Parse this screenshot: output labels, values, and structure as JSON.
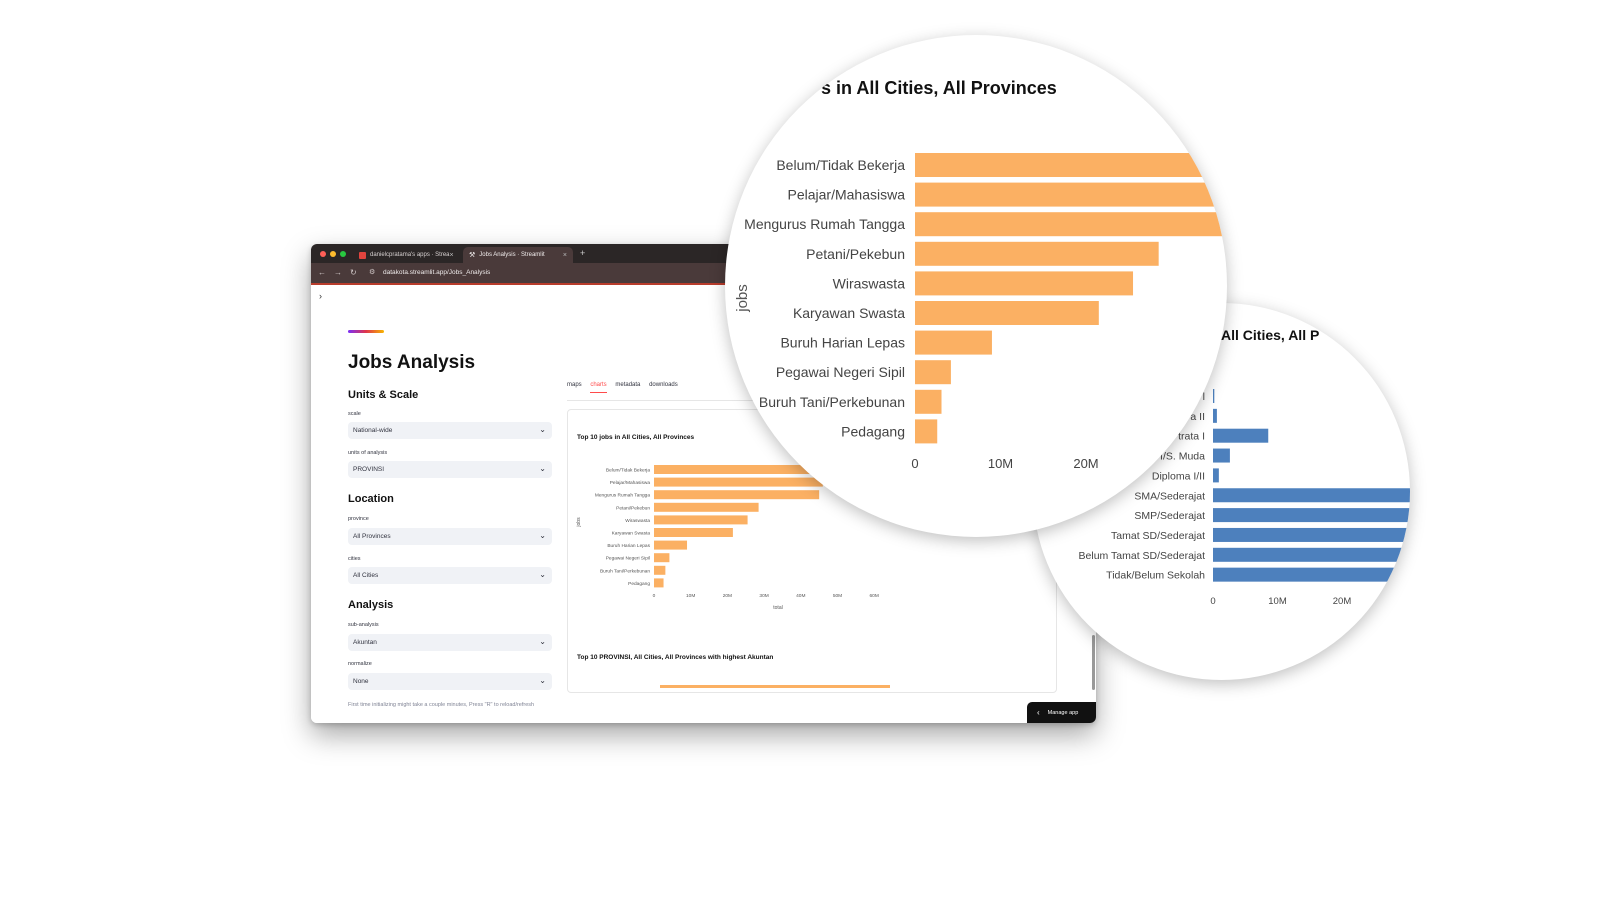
{
  "browser": {
    "tabs": [
      {
        "label": "danielcpratama's apps · Strea"
      },
      {
        "label": "Jobs Analysis · Streamlit"
      }
    ],
    "url": "datakota.streamlit.app/Jobs_Analysis",
    "sidebar_toggle": "›"
  },
  "app": {
    "title": "Jobs Analysis",
    "sections": {
      "units_scale": "Units & Scale",
      "location": "Location",
      "analysis": "Analysis"
    },
    "fields": {
      "scale": {
        "label": "scale",
        "value": "National-wide"
      },
      "units": {
        "label": "units of analysis",
        "value": "PROVINSI"
      },
      "province": {
        "label": "province",
        "value": "All Provinces"
      },
      "cities": {
        "label": "cities",
        "value": "All Cities"
      },
      "sub_analysis": {
        "label": "sub-analysis",
        "value": "Akuntan"
      },
      "normalize": {
        "label": "normalize",
        "value": "None"
      }
    },
    "hint": "First time initializing might take a couple minutes, Press \"R\" to reload/refresh",
    "tabs": [
      "maps",
      "charts",
      "metadata",
      "downloads"
    ],
    "active_tab": "charts",
    "manage_label": "Manage app",
    "chart2_title": "Top 10 PROVINSI, All Cities, All Provinces with highest Akuntan"
  },
  "magnifier_orange": {
    "title": "s in All Cities, All Provinces",
    "ylabel": "jobs",
    "ticks": [
      "0",
      "10M",
      "20M"
    ]
  },
  "magnifier_blue": {
    "title": "f All Cities, All P",
    "categories": [
      "l",
      "a II",
      "trata I",
      "I/S. Muda",
      "Diploma I/II",
      "SMA/Sederajat",
      "SMP/Sederajat",
      "Tamat SD/Sederajat",
      "Belum Tamat SD/Sederajat",
      "Tidak/Belum Sekolah"
    ],
    "values": [
      0.2,
      0.6,
      8.5,
      2.6,
      0.9,
      46,
      44,
      41,
      38,
      35
    ],
    "ticks": [
      "0",
      "10M",
      "20M"
    ],
    "color": "#4d80bd"
  },
  "chart_data": {
    "type": "bar",
    "orientation": "horizontal",
    "title": "Top 10 jobs in All Cities, All Provinces",
    "xlabel": "total",
    "ylabel": "jobs",
    "categories": [
      "Belum/Tidak Bekerja",
      "Pelajar/Mahasiswa",
      "Mengurus Rumah Tangga",
      "Petani/Pekebun",
      "Wiraswasta",
      "Karyawan Swasta",
      "Buruh Harian Lepas",
      "Pegawai Negeri Sipil",
      "Buruh Tani/Perkebunan",
      "Pedagang"
    ],
    "values": [
      47,
      46,
      45,
      28.5,
      25.5,
      21.5,
      9,
      4.2,
      3.1,
      2.6
    ],
    "unit": "M",
    "xlim": [
      0,
      63
    ],
    "ticks": [
      "0",
      "10M",
      "20M",
      "30M",
      "40M",
      "50M",
      "60M"
    ],
    "color": "#fbb063"
  }
}
